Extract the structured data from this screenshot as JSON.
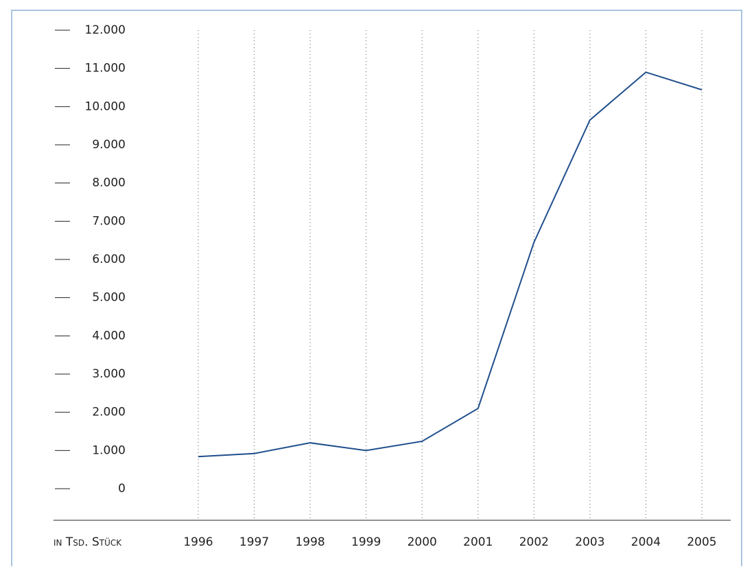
{
  "chart_data": {
    "type": "line",
    "categories": [
      "1996",
      "1997",
      "1998",
      "1999",
      "2000",
      "2001",
      "2002",
      "2003",
      "2004",
      "2005"
    ],
    "series": [
      {
        "color": "#1f4e8c",
        "values": [
          840,
          920,
          1200,
          1000,
          1240,
          2100,
          6450,
          9650,
          10900,
          10440
        ]
      }
    ],
    "ylabel": "in Tsd. Stück",
    "ylim": [
      0,
      12000
    ],
    "yticks": [
      0,
      {
        "value": 1000,
        "label": "1.000"
      },
      {
        "value": 2000,
        "label": "2.000"
      },
      {
        "value": 3000,
        "label": "3.000"
      },
      {
        "value": 4000,
        "label": "4.000"
      },
      {
        "value": 5000,
        "label": "5.000"
      },
      {
        "value": 6000,
        "label": "6.000"
      },
      {
        "value": 7000,
        "label": "7.000"
      },
      {
        "value": 8000,
        "label": "8.000"
      },
      {
        "value": 9000,
        "label": "9.000"
      },
      {
        "value": 10000,
        "label": "10.000"
      },
      {
        "value": 11000,
        "label": "11.000"
      },
      {
        "value": 12000,
        "label": "12.000"
      }
    ],
    "grid": true
  }
}
